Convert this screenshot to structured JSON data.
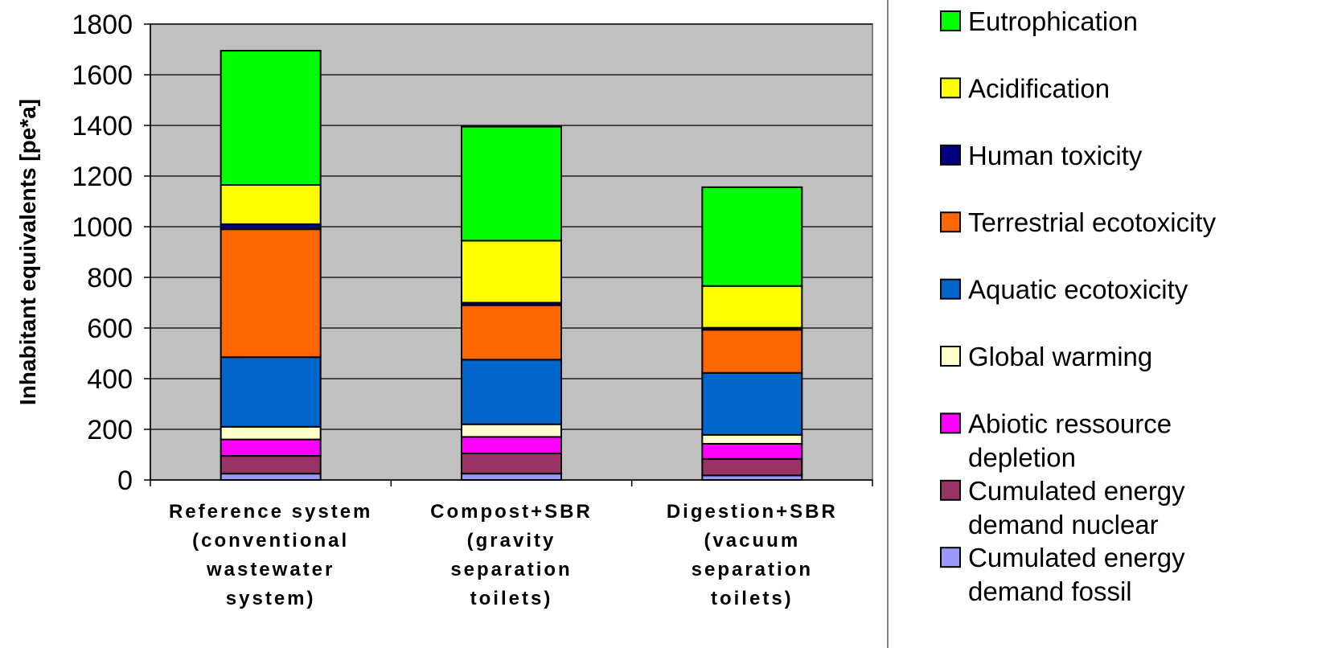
{
  "chart_data": {
    "type": "bar",
    "stacked": true,
    "title": "",
    "xlabel": "",
    "ylabel": "Inhabitant equivalents [pe*a]",
    "ylim": [
      0,
      1800
    ],
    "yticks": [
      0,
      200,
      400,
      600,
      800,
      1000,
      1200,
      1400,
      1600,
      1800
    ],
    "grid": true,
    "legend_position": "right",
    "categories": [
      [
        "Reference system",
        "(conventional",
        "wastewater",
        "system)"
      ],
      [
        "Compost+SBR",
        "(gravity",
        "separation",
        "toilets)"
      ],
      [
        "Digestion+SBR",
        "(vacuum",
        "separation",
        "toilets)"
      ]
    ],
    "series": [
      {
        "name": [
          "Cumulated energy",
          "demand fossil"
        ],
        "color": "#9999ff",
        "values": [
          25,
          25,
          18
        ]
      },
      {
        "name": [
          "Cumulated energy",
          "demand nuclear"
        ],
        "color": "#993366",
        "values": [
          70,
          80,
          65
        ]
      },
      {
        "name": [
          "Abiotic ressource",
          "depletion"
        ],
        "color": "#ff00ff",
        "values": [
          65,
          65,
          60
        ]
      },
      {
        "name": [
          "Global warming"
        ],
        "color": "#ffffcc",
        "values": [
          50,
          50,
          35
        ]
      },
      {
        "name": [
          "Aquatic ecotoxicity"
        ],
        "color": "#0066cc",
        "values": [
          275,
          255,
          245
        ]
      },
      {
        "name": [
          "Terrestrial ecotoxicity"
        ],
        "color": "#ff6600",
        "values": [
          505,
          215,
          170
        ]
      },
      {
        "name": [
          "Human toxicity"
        ],
        "color": "#000080",
        "values": [
          20,
          10,
          8
        ]
      },
      {
        "name": [
          "Acidification"
        ],
        "color": "#ffff00",
        "values": [
          155,
          245,
          165
        ]
      },
      {
        "name": [
          "Eutrophication"
        ],
        "color": "#00ff00",
        "values": [
          530,
          450,
          390
        ]
      }
    ],
    "plot_background": "#c0c0c0"
  }
}
